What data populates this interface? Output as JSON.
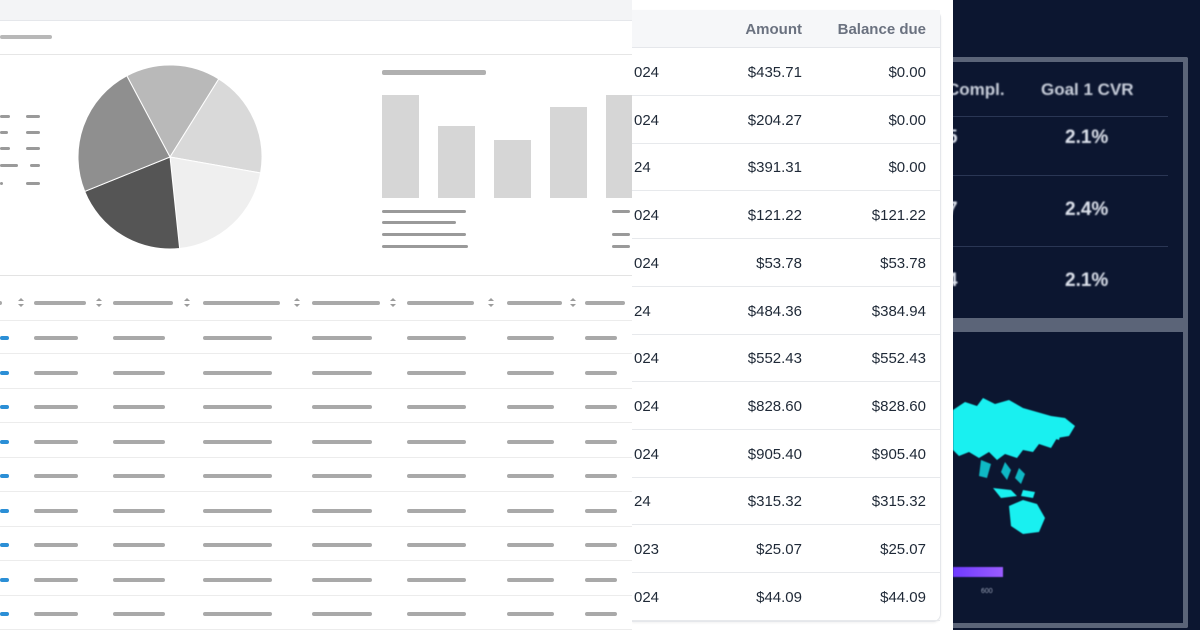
{
  "left_panel": {
    "pie_colors": [
      "#b9b9b9",
      "#d9d9d9",
      "#efefef",
      "#555555",
      "#8f8f8f"
    ],
    "bar_values": [
      100,
      70,
      56,
      88,
      100
    ],
    "accent": "#2b8fd6"
  },
  "invoice_table": {
    "headers": {
      "amount": "Amount",
      "balance_due": "Balance due"
    },
    "rows": [
      {
        "date": "024",
        "amount": "$435.71",
        "balance": "$0.00"
      },
      {
        "date": "024",
        "amount": "$204.27",
        "balance": "$0.00"
      },
      {
        "date": "24",
        "amount": "$391.31",
        "balance": "$0.00"
      },
      {
        "date": "024",
        "amount": "$121.22",
        "balance": "$121.22"
      },
      {
        "date": "024",
        "amount": "$53.78",
        "balance": "$53.78"
      },
      {
        "date": "24",
        "amount": "$484.36",
        "balance": "$384.94"
      },
      {
        "date": "024",
        "amount": "$552.43",
        "balance": "$552.43"
      },
      {
        "date": "024",
        "amount": "$828.60",
        "balance": "$828.60"
      },
      {
        "date": "024",
        "amount": "$905.40",
        "balance": "$905.40"
      },
      {
        "date": "24",
        "amount": "$315.32",
        "balance": "$315.32"
      },
      {
        "date": "023",
        "amount": "$25.07",
        "balance": "$25.07"
      },
      {
        "date": "024",
        "amount": "$44.09",
        "balance": "$44.09"
      }
    ]
  },
  "dark_panel": {
    "headers": {
      "compl": "Compl.",
      "goal_cvr": "Goal 1 CVR"
    },
    "rows": [
      {
        "compl": "5",
        "cvr": "2.1%"
      },
      {
        "compl": "7",
        "cvr": "2.4%"
      },
      {
        "compl": "4",
        "cvr": "2.1%"
      }
    ],
    "map_color": "#19f0f0",
    "legend_label": "600"
  }
}
